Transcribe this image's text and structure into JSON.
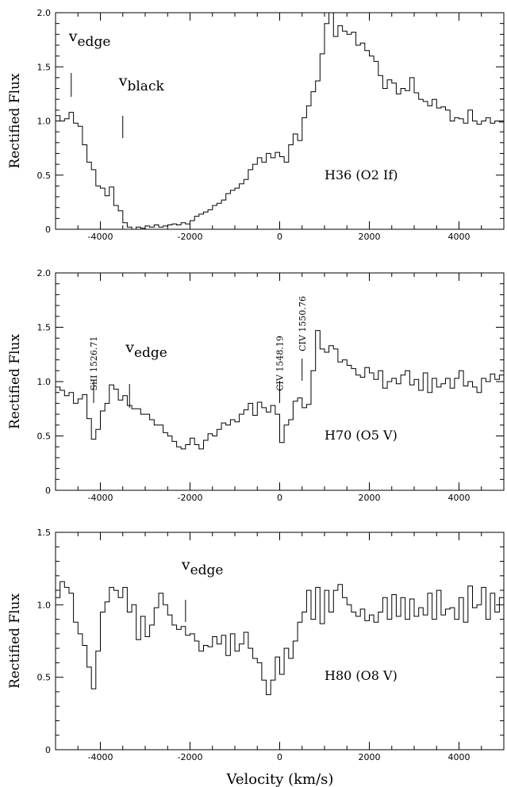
{
  "xlabel": "Velocity (km/s)",
  "chart_data": [
    {
      "type": "line",
      "object": "H36 (O2 If)",
      "ylabel": "Rectified Flux",
      "xlim": [
        -5000,
        5000
      ],
      "ylim": [
        0,
        2.0
      ],
      "xticks": [
        -4000,
        -2000,
        0,
        2000,
        4000
      ],
      "yticks": [
        0,
        0.5,
        1.0,
        1.5,
        2.0
      ],
      "x": [
        -5000,
        -4900,
        -4800,
        -4700,
        -4600,
        -4500,
        -4400,
        -4300,
        -4200,
        -4100,
        -4000,
        -3900,
        -3800,
        -3700,
        -3600,
        -3500,
        -3400,
        -3300,
        -3200,
        -3100,
        -3000,
        -2900,
        -2800,
        -2700,
        -2600,
        -2500,
        -2400,
        -2300,
        -2200,
        -2100,
        -2000,
        -1900,
        -1800,
        -1700,
        -1600,
        -1500,
        -1400,
        -1300,
        -1200,
        -1100,
        -1000,
        -900,
        -800,
        -700,
        -600,
        -500,
        -400,
        -300,
        -200,
        -100,
        0,
        100,
        200,
        300,
        400,
        500,
        600,
        700,
        800,
        900,
        1000,
        1100,
        1200,
        1300,
        1400,
        1500,
        1600,
        1700,
        1800,
        1900,
        2000,
        2100,
        2200,
        2300,
        2400,
        2500,
        2600,
        2700,
        2800,
        2900,
        3000,
        3100,
        3200,
        3300,
        3400,
        3500,
        3600,
        3700,
        3800,
        3900,
        4000,
        4100,
        4200,
        4300,
        4400,
        4500,
        4600,
        4700,
        4800,
        4900
      ],
      "y": [
        1.05,
        1.0,
        1.02,
        1.08,
        0.98,
        0.95,
        0.78,
        0.62,
        0.55,
        0.4,
        0.38,
        0.31,
        0.39,
        0.22,
        0.17,
        0.06,
        0.02,
        0.0,
        0.02,
        0.01,
        0.03,
        0.02,
        0.04,
        0.02,
        0.03,
        0.04,
        0.05,
        0.04,
        0.06,
        0.05,
        0.08,
        0.12,
        0.14,
        0.16,
        0.18,
        0.22,
        0.24,
        0.27,
        0.33,
        0.36,
        0.38,
        0.42,
        0.46,
        0.55,
        0.6,
        0.66,
        0.62,
        0.7,
        0.66,
        0.71,
        0.67,
        0.62,
        0.78,
        0.88,
        0.82,
        1.03,
        1.14,
        1.27,
        1.37,
        1.62,
        1.9,
        2.05,
        1.78,
        1.88,
        1.83,
        1.8,
        1.82,
        1.7,
        1.72,
        1.65,
        1.6,
        1.55,
        1.42,
        1.3,
        1.38,
        1.35,
        1.25,
        1.3,
        1.28,
        1.4,
        1.26,
        1.2,
        1.18,
        1.14,
        1.2,
        1.12,
        1.13,
        1.1,
        1.0,
        1.03,
        1.02,
        0.98,
        1.1,
        1.0,
        0.97,
        1.0,
        1.03,
        0.98,
        1.0,
        0.99
      ],
      "annotations": [
        {
          "label": "v",
          "sub": "edge",
          "x": -4650
        },
        {
          "label": "v",
          "sub": "black",
          "x": -3500
        }
      ]
    },
    {
      "type": "line",
      "object": "H70 (O5 V)",
      "ylabel": "Rectified Flux",
      "xlim": [
        -5000,
        5000
      ],
      "ylim": [
        0,
        2.0
      ],
      "xticks": [
        -4000,
        -2000,
        0,
        2000,
        4000
      ],
      "yticks": [
        0,
        0.5,
        1.0,
        1.5,
        2.0
      ],
      "x": [
        -5000,
        -4900,
        -4800,
        -4700,
        -4600,
        -4500,
        -4400,
        -4300,
        -4200,
        -4100,
        -4000,
        -3900,
        -3800,
        -3700,
        -3600,
        -3500,
        -3400,
        -3300,
        -3200,
        -3100,
        -3000,
        -2900,
        -2800,
        -2700,
        -2600,
        -2500,
        -2400,
        -2300,
        -2200,
        -2100,
        -2000,
        -1900,
        -1800,
        -1700,
        -1600,
        -1500,
        -1400,
        -1300,
        -1200,
        -1100,
        -1000,
        -900,
        -800,
        -700,
        -600,
        -500,
        -400,
        -300,
        -200,
        -100,
        0,
        100,
        200,
        300,
        400,
        500,
        600,
        700,
        800,
        900,
        1000,
        1100,
        1200,
        1300,
        1400,
        1500,
        1600,
        1700,
        1800,
        1900,
        2000,
        2100,
        2200,
        2300,
        2400,
        2500,
        2600,
        2700,
        2800,
        2900,
        3000,
        3100,
        3200,
        3300,
        3400,
        3500,
        3600,
        3700,
        3800,
        3900,
        4000,
        4100,
        4200,
        4300,
        4400,
        4500,
        4600,
        4700,
        4800,
        4900
      ],
      "y": [
        0.95,
        0.92,
        0.87,
        0.9,
        0.8,
        0.84,
        0.88,
        0.66,
        0.47,
        0.56,
        0.73,
        0.8,
        0.97,
        0.93,
        0.83,
        0.87,
        0.78,
        0.75,
        0.75,
        0.7,
        0.7,
        0.65,
        0.6,
        0.6,
        0.53,
        0.5,
        0.45,
        0.4,
        0.38,
        0.42,
        0.48,
        0.42,
        0.38,
        0.46,
        0.52,
        0.5,
        0.56,
        0.62,
        0.6,
        0.65,
        0.63,
        0.7,
        0.74,
        0.8,
        0.69,
        0.81,
        0.76,
        0.72,
        0.78,
        0.7,
        0.44,
        0.6,
        0.65,
        0.82,
        0.85,
        0.76,
        0.79,
        1.1,
        1.47,
        1.3,
        1.27,
        1.33,
        1.3,
        1.18,
        1.2,
        1.15,
        1.12,
        1.06,
        1.04,
        1.13,
        1.08,
        1.02,
        1.1,
        0.94,
        1.0,
        1.03,
        0.98,
        1.06,
        1.1,
        0.97,
        1.02,
        0.92,
        1.08,
        0.9,
        1.03,
        0.95,
        0.98,
        1.03,
        0.94,
        1.03,
        1.1,
        0.96,
        1.0,
        0.95,
        0.9,
        1.03,
        1.0,
        1.07,
        1.02,
        1.06
      ],
      "annotations": [
        {
          "label": "v",
          "sub": "edge",
          "x": -3350
        },
        {
          "label": "SiII 1526.71",
          "x": -4150
        },
        {
          "label": "CIV 1548.19",
          "x": 0
        },
        {
          "label": "CIV 1550.76",
          "x": 500
        }
      ]
    },
    {
      "type": "line",
      "object": "H80 (O8 V)",
      "ylabel": "Rectified Flux",
      "xlabel": "Velocity (km/s)",
      "xlim": [
        -5000,
        5000
      ],
      "ylim": [
        0,
        1.5
      ],
      "xticks": [
        -4000,
        -2000,
        0,
        2000,
        4000
      ],
      "yticks": [
        0,
        0.5,
        1.0,
        1.5
      ],
      "x": [
        -5000,
        -4900,
        -4800,
        -4700,
        -4600,
        -4500,
        -4400,
        -4300,
        -4200,
        -4100,
        -4000,
        -3900,
        -3800,
        -3700,
        -3600,
        -3500,
        -3400,
        -3300,
        -3200,
        -3100,
        -3000,
        -2900,
        -2800,
        -2700,
        -2600,
        -2500,
        -2400,
        -2300,
        -2200,
        -2100,
        -2000,
        -1900,
        -1800,
        -1700,
        -1600,
        -1500,
        -1400,
        -1300,
        -1200,
        -1100,
        -1000,
        -900,
        -800,
        -700,
        -600,
        -500,
        -400,
        -300,
        -200,
        -100,
        0,
        100,
        200,
        300,
        400,
        500,
        600,
        700,
        800,
        900,
        1000,
        1100,
        1200,
        1300,
        1400,
        1500,
        1600,
        1700,
        1800,
        1900,
        2000,
        2100,
        2200,
        2300,
        2400,
        2500,
        2600,
        2700,
        2800,
        2900,
        3000,
        3100,
        3200,
        3300,
        3400,
        3500,
        3600,
        3700,
        3800,
        3900,
        4000,
        4100,
        4200,
        4300,
        4400,
        4500,
        4600,
        4700,
        4800,
        4900
      ],
      "y": [
        1.05,
        1.16,
        1.12,
        1.08,
        0.88,
        0.8,
        0.72,
        0.57,
        0.42,
        0.68,
        0.95,
        1.02,
        1.12,
        1.1,
        1.05,
        1.12,
        0.95,
        1.0,
        0.76,
        0.92,
        0.78,
        0.86,
        0.98,
        1.08,
        1.0,
        0.93,
        0.86,
        0.83,
        0.85,
        0.79,
        0.8,
        0.75,
        0.68,
        0.72,
        0.71,
        0.78,
        0.73,
        0.79,
        0.65,
        0.8,
        0.68,
        0.73,
        0.81,
        0.7,
        0.63,
        0.6,
        0.48,
        0.38,
        0.48,
        0.64,
        0.52,
        0.7,
        0.63,
        0.75,
        0.88,
        0.95,
        1.1,
        0.9,
        1.12,
        0.87,
        1.1,
        0.95,
        1.1,
        1.14,
        1.05,
        1.0,
        0.95,
        0.92,
        0.97,
        0.89,
        0.93,
        0.88,
        0.95,
        1.05,
        0.9,
        1.07,
        0.92,
        1.05,
        0.9,
        1.04,
        0.92,
        0.98,
        0.93,
        1.08,
        0.9,
        1.1,
        0.93,
        0.97,
        0.98,
        0.9,
        1.05,
        0.88,
        1.13,
        0.98,
        1.0,
        1.12,
        0.9,
        1.08,
        0.95,
        1.05
      ],
      "annotations": [
        {
          "label": "v",
          "sub": "edge",
          "x": -2100
        }
      ]
    }
  ]
}
